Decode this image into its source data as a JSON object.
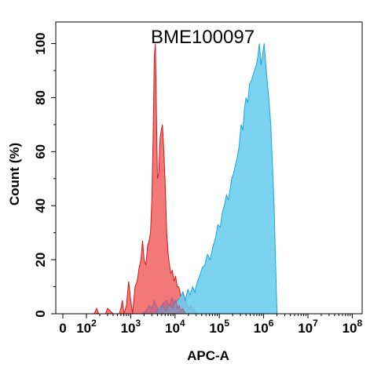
{
  "chart_data": {
    "type": "area",
    "title": "BME100097",
    "xlabel": "APC-A",
    "ylabel": "Count  (%)",
    "xscale": "biexponential",
    "xlim": [
      0,
      100000000
    ],
    "ylim": [
      0,
      108
    ],
    "x_ticks": [
      {
        "label": "0",
        "value": 0
      },
      {
        "base": "10",
        "exp": "2",
        "value": 100
      },
      {
        "base": "10",
        "exp": "3",
        "value": 1000
      },
      {
        "base": "10",
        "exp": "4",
        "value": 10000
      },
      {
        "base": "10",
        "exp": "5",
        "value": 100000
      },
      {
        "base": "10",
        "exp": "6",
        "value": 1000000
      },
      {
        "base": "10",
        "exp": "7",
        "value": 10000000
      },
      {
        "base": "10",
        "exp": "8",
        "value": 100000000
      }
    ],
    "y_ticks": [
      0,
      20,
      40,
      60,
      80,
      100
    ],
    "grid": false,
    "legend": "none",
    "series": [
      {
        "color": "#f26a6a",
        "stroke": "#d11818",
        "x": [
          150,
          170,
          190,
          210,
          240,
          270,
          300,
          400,
          550,
          600,
          650,
          700,
          800,
          900,
          1000,
          1100,
          1250,
          1400,
          1550,
          1700,
          1850,
          2000,
          2200,
          2400,
          2600,
          2800,
          3000,
          3200,
          3400,
          3600,
          3800,
          4000,
          4300,
          4600,
          4900,
          5200,
          5600,
          6000,
          6500,
          7000,
          7500,
          8000,
          8700,
          9500,
          10300,
          11200,
          12100,
          13000,
          14000,
          15200,
          16500,
          18000,
          19500,
          21000,
          23000,
          25000,
          28000,
          32000
        ],
        "values": [
          0,
          2,
          0,
          0,
          0,
          0,
          2,
          0,
          0,
          2,
          5,
          0,
          3,
          12,
          5,
          0,
          10,
          12,
          17,
          20,
          27,
          20,
          18,
          25,
          27,
          30,
          42,
          65,
          95,
          100,
          75,
          50,
          52,
          65,
          68,
          70,
          60,
          48,
          30,
          22,
          18,
          15,
          16,
          12,
          14,
          10,
          10,
          8,
          4,
          8,
          5,
          4,
          2,
          2,
          3,
          2,
          1,
          0
        ]
      },
      {
        "color": "#6dcdef",
        "stroke": "#19a7db",
        "x": [
          200,
          300,
          500,
          700,
          900,
          1100,
          1400,
          1700,
          2000,
          2500,
          3000,
          3600,
          4300,
          5200,
          6200,
          7400,
          8800,
          10000,
          11500,
          13000,
          15000,
          17000,
          19500,
          22000,
          25000,
          28000,
          32000,
          36000,
          41000,
          47000,
          54000,
          62000,
          72000,
          82000,
          92000,
          105000,
          118000,
          130000,
          145000,
          160000,
          175000,
          190000,
          210000,
          230000,
          255000,
          280000,
          310000,
          340000,
          370000,
          400000,
          440000,
          480000,
          520000,
          570000,
          620000,
          680000,
          740000,
          800000,
          870000,
          950000,
          1030000,
          1120000,
          1220000,
          1330000,
          1450000,
          1580000,
          1720000,
          1850000,
          2000000
        ],
        "values": [
          0,
          0,
          0,
          0,
          0,
          0,
          0,
          0,
          0,
          0,
          0,
          0,
          2,
          3,
          1,
          3,
          2,
          4,
          5,
          6,
          8,
          5,
          9,
          7,
          10,
          8,
          12,
          14,
          17,
          18,
          22,
          20,
          25,
          28,
          33,
          32,
          38,
          40,
          44,
          42,
          46,
          50,
          52,
          55,
          58,
          62,
          70,
          68,
          76,
          80,
          78,
          85,
          86,
          88,
          90,
          92,
          95,
          100,
          92,
          96,
          100,
          92,
          85,
          78,
          70,
          55,
          40,
          20,
          0
        ]
      },
      {
        "color": "#a85e88",
        "stroke": "#a85e88",
        "x": [
          1800,
          2200,
          2600,
          3000,
          3400,
          3800,
          4200,
          4800,
          5500,
          6500,
          7500,
          8500,
          9500,
          10500,
          11500,
          12500,
          13500,
          15000,
          17000
        ],
        "values": [
          0,
          1,
          3,
          2,
          5,
          3,
          1,
          2,
          4,
          5,
          3,
          6,
          4,
          5,
          2,
          3,
          1,
          2,
          0
        ]
      }
    ]
  }
}
